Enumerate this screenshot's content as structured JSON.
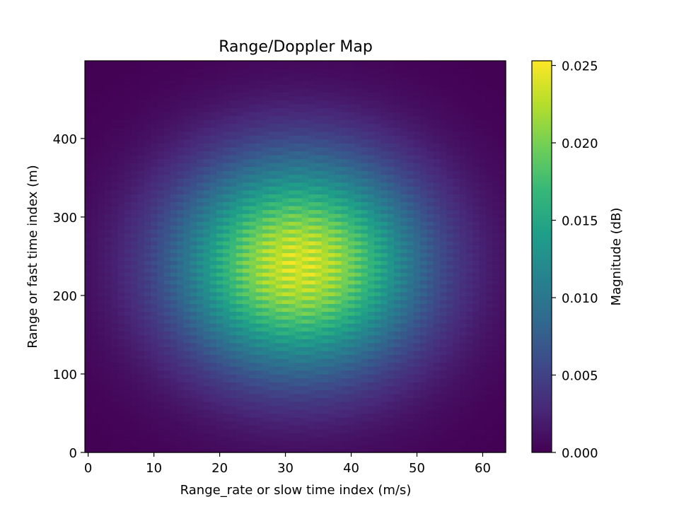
{
  "chart_data": {
    "type": "heatmap",
    "title": "Range/Doppler Map",
    "xlabel": "Range_rate or slow time index (m/s)",
    "ylabel": "Range or fast time index  (m)",
    "xlim": [
      -0.5,
      63.5
    ],
    "ylim": [
      0,
      499
    ],
    "xticks": [
      0,
      10,
      20,
      30,
      40,
      50,
      60
    ],
    "yticks": [
      0,
      100,
      200,
      300,
      400
    ],
    "grid": false,
    "colormap": "viridis",
    "peak": {
      "x": 32,
      "y": 240,
      "value": 0.0253
    },
    "spread": {
      "x_sigma": 13,
      "y_sigma": 95
    },
    "colorbar": {
      "label": "Magnitude (dB)",
      "range": [
        0.0,
        0.0253
      ],
      "ticks": [
        "0.000",
        "0.005",
        "0.010",
        "0.015",
        "0.020",
        "0.025"
      ],
      "tick_values": [
        0.0,
        0.005,
        0.01,
        0.015,
        0.02,
        0.025
      ]
    }
  },
  "colors": {
    "viridis_stops": [
      "#440154",
      "#482878",
      "#3e4989",
      "#31688e",
      "#26828e",
      "#1f9e89",
      "#35b779",
      "#6ece58",
      "#b5de2b",
      "#fde725"
    ]
  }
}
